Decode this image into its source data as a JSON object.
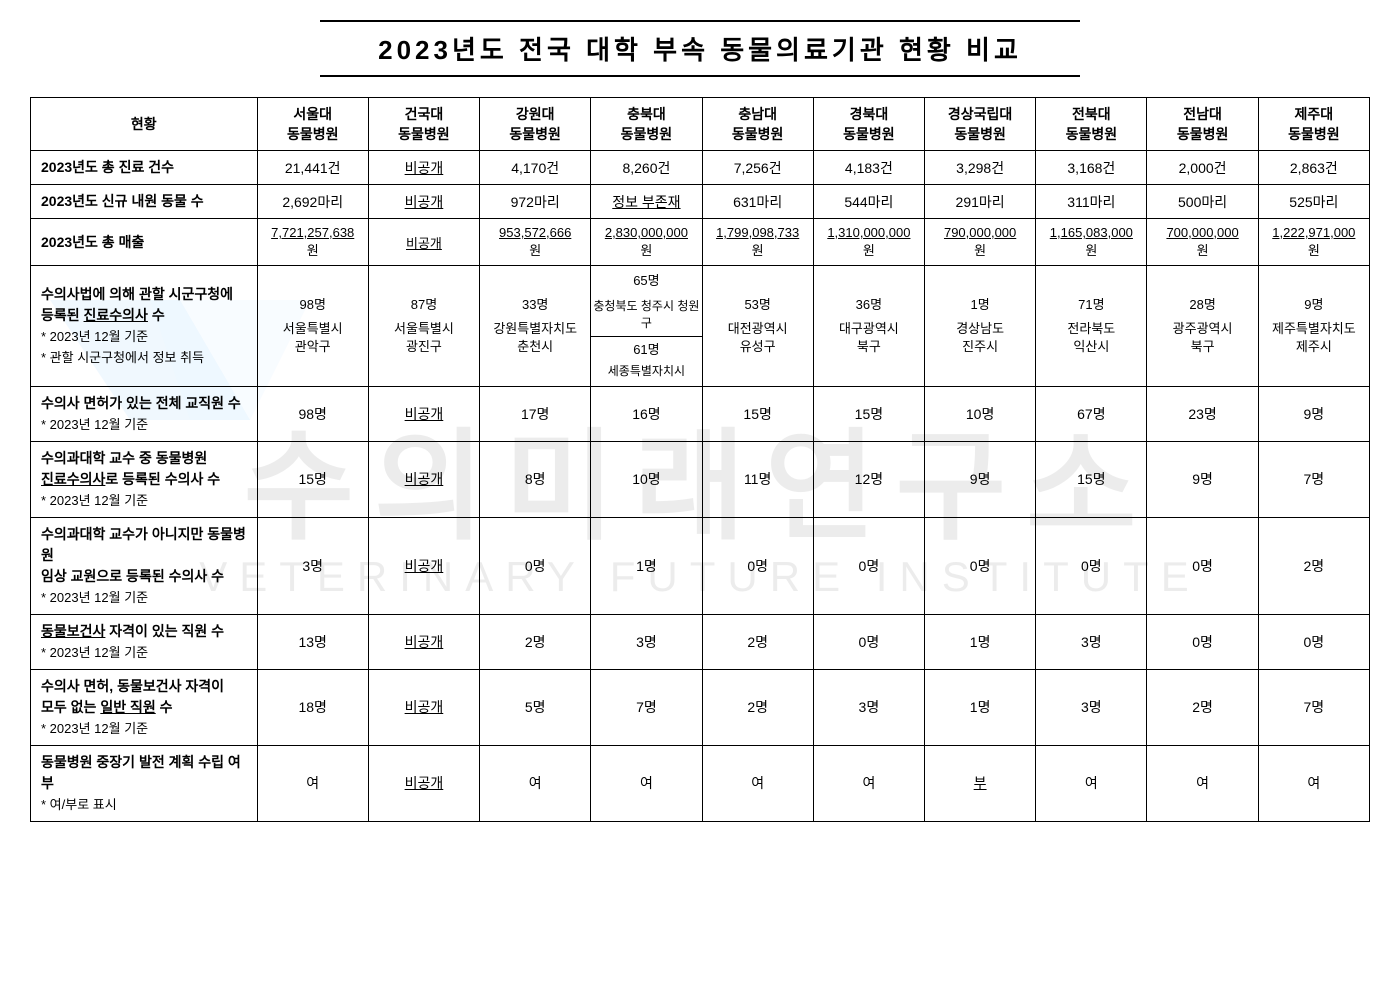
{
  "title": "2023년도 전국 대학 부속 동물의료기관 현황 비교",
  "watermark_ko": "수의미래연구소",
  "watermark_en": "VETERINARY FUTURE INSTITUTE",
  "colors": {
    "border": "#000000",
    "text": "#000000",
    "watermark": "#888888",
    "logo": "#3fa9f5"
  },
  "headers": [
    {
      "l1": "서울대",
      "l2": "동물병원"
    },
    {
      "l1": "건국대",
      "l2": "동물병원"
    },
    {
      "l1": "강원대",
      "l2": "동물병원"
    },
    {
      "l1": "충북대",
      "l2": "동물병원"
    },
    {
      "l1": "충남대",
      "l2": "동물병원"
    },
    {
      "l1": "경북대",
      "l2": "동물병원"
    },
    {
      "l1": "경상국립대",
      "l2": "동물병원"
    },
    {
      "l1": "전북대",
      "l2": "동물병원"
    },
    {
      "l1": "전남대",
      "l2": "동물병원"
    },
    {
      "l1": "제주대",
      "l2": "동물병원"
    }
  ],
  "row_header_currenthx": "현황",
  "rows": {
    "r1": {
      "label": "2023년도 총 진료 건수",
      "vals": [
        "21,441건",
        "비공개",
        "4,170건",
        "8,260건",
        "7,256건",
        "4,183건",
        "3,298건",
        "3,168건",
        "2,000건",
        "2,863건"
      ],
      "underline": [
        false,
        true,
        false,
        false,
        false,
        false,
        false,
        false,
        false,
        false
      ]
    },
    "r2": {
      "label": "2023년도 신규 내원 동물 수",
      "vals": [
        "2,692마리",
        "비공개",
        "972마리",
        "정보 부존재",
        "631마리",
        "544마리",
        "291마리",
        "311마리",
        "500마리",
        "525마리"
      ],
      "underline": [
        false,
        true,
        false,
        true,
        false,
        false,
        false,
        false,
        false,
        false
      ]
    },
    "r3": {
      "label": "2023년도 총 매출",
      "vals": [
        "7,721,257,638원",
        "비공개",
        "953,572,666원",
        "2,830,000,000원",
        "1,799,098,733원",
        "1,310,000,000원",
        "790,000,000원",
        "1,165,083,000원",
        "700,000,000원",
        "1,222,971,000원"
      ],
      "underline": [
        true,
        true,
        true,
        true,
        true,
        true,
        true,
        true,
        true,
        true
      ]
    },
    "r4": {
      "label_l1": "수의사법에 의해 관할 시군구청에",
      "label_l2": "등록된 진료수의사 수",
      "label_note1": "* 2023년 12월 기준",
      "label_note2": "* 관할 시군구청에서 정보 취득",
      "counts": [
        "98명",
        "87명",
        "33명",
        "",
        "53명",
        "36명",
        "1명",
        "71명",
        "28명",
        "9명"
      ],
      "locs": [
        "서울특별시 관악구",
        "서울특별시 광진구",
        "강원특별자치도 춘천시",
        "",
        "대전광역시 유성구",
        "대구광역시 북구",
        "경상남도 진주시",
        "전라북도 익산시",
        "광주광역시 북구",
        "제주특별자치도 제주시"
      ],
      "chungbuk_top": "65명",
      "chungbuk_loc1": "충청북도 청주시 청원구",
      "chungbuk_mid": "61명",
      "chungbuk_loc2": "세종특별자치시"
    },
    "r5": {
      "label_l1": "수의사 면허가 있는 전체 교직원 수",
      "label_note": "* 2023년 12월 기준",
      "vals": [
        "98명",
        "비공개",
        "17명",
        "16명",
        "15명",
        "15명",
        "10명",
        "67명",
        "23명",
        "9명"
      ],
      "underline": [
        false,
        true,
        false,
        false,
        false,
        false,
        false,
        false,
        false,
        false
      ]
    },
    "r6": {
      "label_l1": "수의과대학 교수 중 동물병원",
      "label_l2": "진료수의사로 등록된 수의사 수",
      "label_note": "* 2023년 12월 기준",
      "vals": [
        "15명",
        "비공개",
        "8명",
        "10명",
        "11명",
        "12명",
        "9명",
        "15명",
        "9명",
        "7명"
      ],
      "underline": [
        false,
        true,
        false,
        false,
        false,
        false,
        false,
        false,
        false,
        false
      ]
    },
    "r7": {
      "label_l1": "수의과대학 교수가 아니지만 동물병원",
      "label_l2": "임상 교원으로 등록된 수의사 수",
      "label_note": "* 2023년 12월 기준",
      "vals": [
        "3명",
        "비공개",
        "0명",
        "1명",
        "0명",
        "0명",
        "0명",
        "0명",
        "0명",
        "2명"
      ],
      "underline": [
        false,
        true,
        false,
        false,
        false,
        false,
        false,
        false,
        false,
        false
      ]
    },
    "r8": {
      "label_l1": "동물보건사 자격이 있는 직원 수",
      "label_note": "* 2023년 12월 기준",
      "vals": [
        "13명",
        "비공개",
        "2명",
        "3명",
        "2명",
        "0명",
        "1명",
        "3명",
        "0명",
        "0명"
      ],
      "underline": [
        false,
        true,
        false,
        false,
        false,
        false,
        false,
        false,
        false,
        false
      ]
    },
    "r9": {
      "label_l1": "수의사 면허, 동물보건사 자격이",
      "label_l2": "모두 없는 일반 직원 수",
      "label_note": "* 2023년 12월 기준",
      "vals": [
        "18명",
        "비공개",
        "5명",
        "7명",
        "2명",
        "3명",
        "1명",
        "3명",
        "2명",
        "7명"
      ],
      "underline": [
        false,
        true,
        false,
        false,
        false,
        false,
        false,
        false,
        false,
        false
      ]
    },
    "r10": {
      "label_l1": "동물병원 중장기 발전 계획 수립 여부",
      "label_note": "* 여/부로 표시",
      "vals": [
        "여",
        "비공개",
        "여",
        "여",
        "여",
        "여",
        "부",
        "여",
        "여",
        "여"
      ],
      "underline": [
        false,
        true,
        false,
        false,
        false,
        false,
        true,
        false,
        false,
        false
      ]
    }
  }
}
